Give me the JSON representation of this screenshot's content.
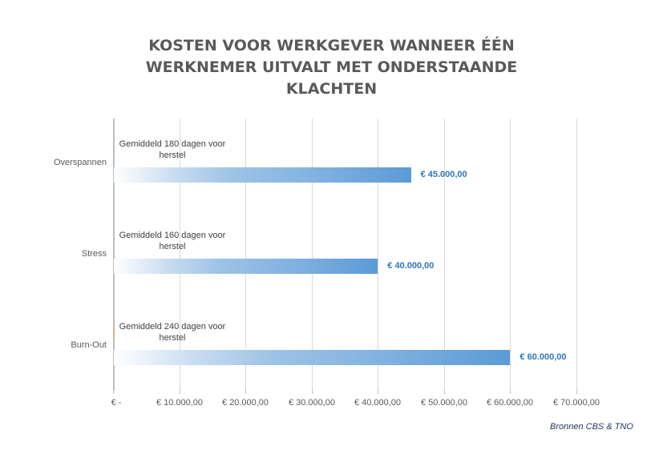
{
  "chart_data": {
    "type": "bar",
    "orientation": "horizontal",
    "title": "KOSTEN VOOR WERKGEVER WANNEER ÉÉN WERKNEMER UITVALT MET ONDERSTAANDE KLACHTEN",
    "title_lines": [
      "KOSTEN VOOR WERKGEVER WANNEER ÉÉN",
      "WERKNEMER UITVALT MET ONDERSTAANDE",
      "KLACHTEN"
    ],
    "categories": [
      "Overspannen",
      "Stress",
      "Burn-Out"
    ],
    "values": [
      45000,
      40000,
      60000
    ],
    "value_labels": [
      "€ 45.000,00",
      "€ 40.000,00",
      "€ 60.000,00"
    ],
    "annotations": [
      {
        "category": "Overspannen",
        "line1": "Gemiddeld 180 dagen voor",
        "line2": "herstel"
      },
      {
        "category": "Stress",
        "line1": "Gemiddeld 160 dagen voor",
        "line2": "herstel"
      },
      {
        "category": "Burn-Out",
        "line1": "Gemiddeld 240 dagen voor",
        "line2": "herstel"
      }
    ],
    "xlim": [
      0,
      70000
    ],
    "x_ticks": [
      0,
      10000,
      20000,
      30000,
      40000,
      50000,
      60000,
      70000
    ],
    "x_tick_labels": [
      "€ -",
      "€ 10.000,00",
      "€ 20.000,00",
      "€ 30.000,00",
      "€ 40.000,00",
      "€ 50.000,00",
      "€ 60.000,00",
      "€ 70.000,00"
    ],
    "xlabel": "",
    "ylabel": "",
    "grid": true,
    "legend": null,
    "bar_style": "gradient white to #5b9bd5",
    "colors": {
      "bar": "#5b9bd5",
      "value_label": "#2e75b6",
      "title": "#595959"
    },
    "source": "Bronnen CBS & TNO"
  }
}
